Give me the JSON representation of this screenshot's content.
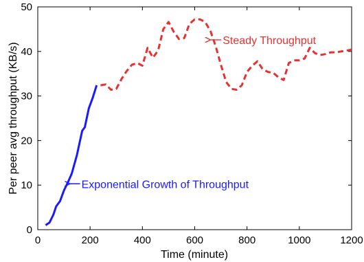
{
  "chart_data": {
    "type": "line",
    "xlabel": "Time (minute)",
    "ylabel": "Per peer avg throughput (KB/s)",
    "xlim": [
      0,
      1200
    ],
    "ylim": [
      0,
      50
    ],
    "grid": false,
    "xticks": [
      "0",
      "200",
      "400",
      "600",
      "800",
      "1000",
      "1200"
    ],
    "yticks": [
      "0",
      "10",
      "20",
      "30",
      "40",
      "50"
    ],
    "series": [
      {
        "style": "solid",
        "color": "#1a1aff",
        "x": [
          30,
          45,
          60,
          70,
          85,
          100,
          115,
          130,
          150,
          170,
          180,
          195,
          210,
          225
        ],
        "y": [
          1,
          1.6,
          3.4,
          5.2,
          6.4,
          8.8,
          10.6,
          12.6,
          16.8,
          22.2,
          23.0,
          27.2,
          29.6,
          32.4
        ]
      },
      {
        "style": "dashed",
        "color": "#e83030",
        "x": [
          240,
          260,
          280,
          300,
          320,
          340,
          360,
          380,
          400,
          420,
          440,
          460,
          480,
          500,
          520,
          540,
          560,
          580,
          600,
          620,
          640,
          660,
          680,
          700,
          720,
          740,
          760,
          780,
          800,
          820,
          840,
          860,
          880,
          900,
          920,
          940,
          960,
          980,
          1000,
          1020,
          1040,
          1060,
          1080,
          1100,
          1120,
          1140,
          1160,
          1180,
          1200
        ],
        "y": [
          32.4,
          32.6,
          31.4,
          31.6,
          33.8,
          35.6,
          37.0,
          37.4,
          36.8,
          40.8,
          38.6,
          40.2,
          45.0,
          46.6,
          44.4,
          42.8,
          43.0,
          46.2,
          47.2,
          47.2,
          46.6,
          44.6,
          41.2,
          37.0,
          33.2,
          31.6,
          31.4,
          32.4,
          35.4,
          36.8,
          37.8,
          36.0,
          35.4,
          35.2,
          34.2,
          33.6,
          37.4,
          38.0,
          38.0,
          38.4,
          40.8,
          39.6,
          39.2,
          39.4,
          39.8,
          39.8,
          40.0,
          40.2,
          40.4
        ]
      }
    ],
    "annotations": [
      {
        "text": "Steady Throughput",
        "color": "#e83030",
        "x": 665,
        "y": 42.6,
        "arrow_to_x": 655,
        "arrow_to_y": 42.6
      },
      {
        "text": "Exponential Growth of Throughput",
        "color": "#1a1aff",
        "x": 125,
        "y": 10.3,
        "arrow_to_x": 118,
        "arrow_to_y": 10.3
      }
    ]
  }
}
